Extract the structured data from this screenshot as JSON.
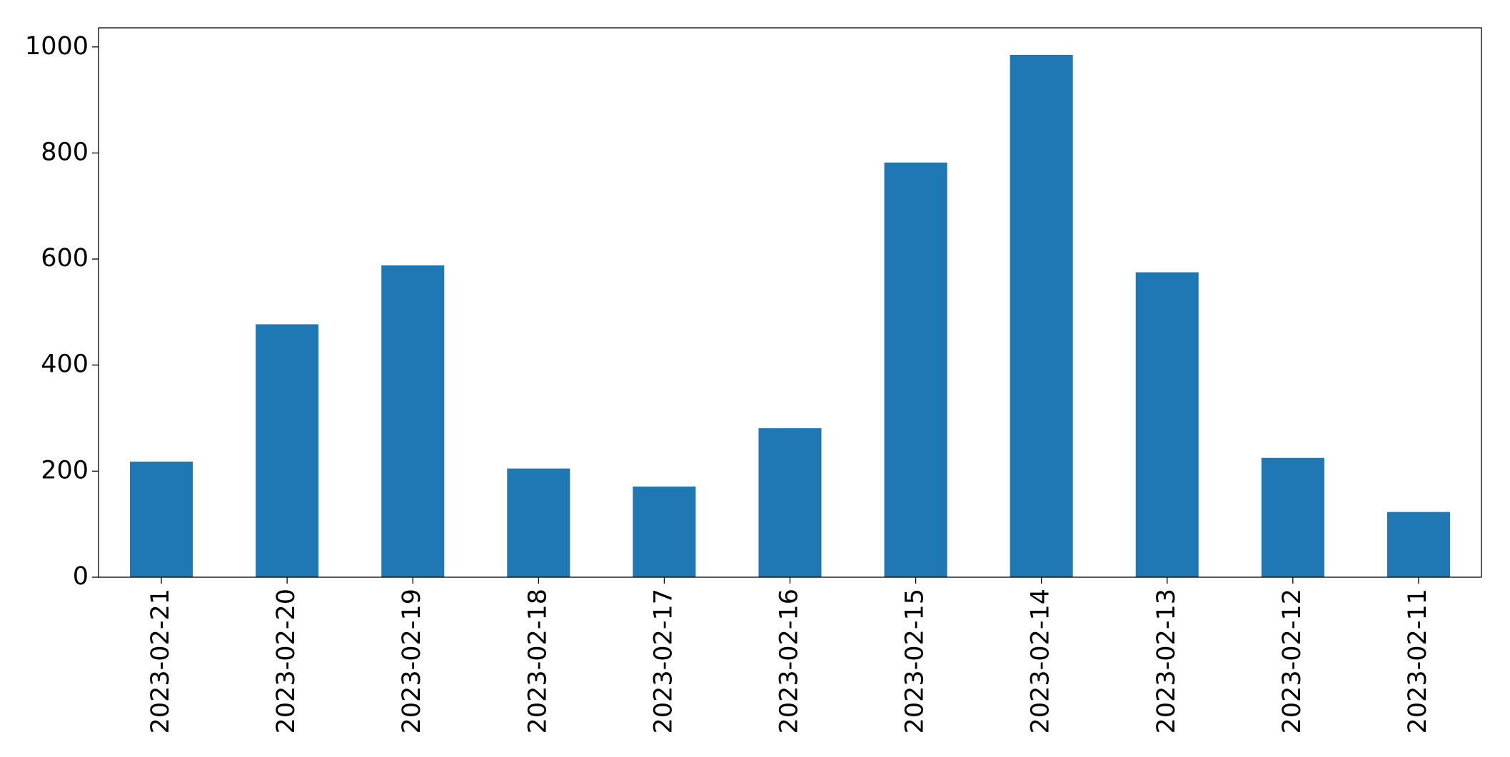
{
  "chart_data": {
    "type": "bar",
    "categories": [
      "2023-02-21",
      "2023-02-20",
      "2023-02-19",
      "2023-02-18",
      "2023-02-17",
      "2023-02-16",
      "2023-02-15",
      "2023-02-14",
      "2023-02-13",
      "2023-02-12",
      "2023-02-11"
    ],
    "values": [
      218,
      477,
      588,
      205,
      171,
      281,
      782,
      985,
      575,
      225,
      123
    ],
    "color": "#1f77b4",
    "ylim": [
      0,
      1036
    ],
    "yticks": [
      0,
      200,
      400,
      600,
      800,
      1000
    ],
    "grid": false
  }
}
